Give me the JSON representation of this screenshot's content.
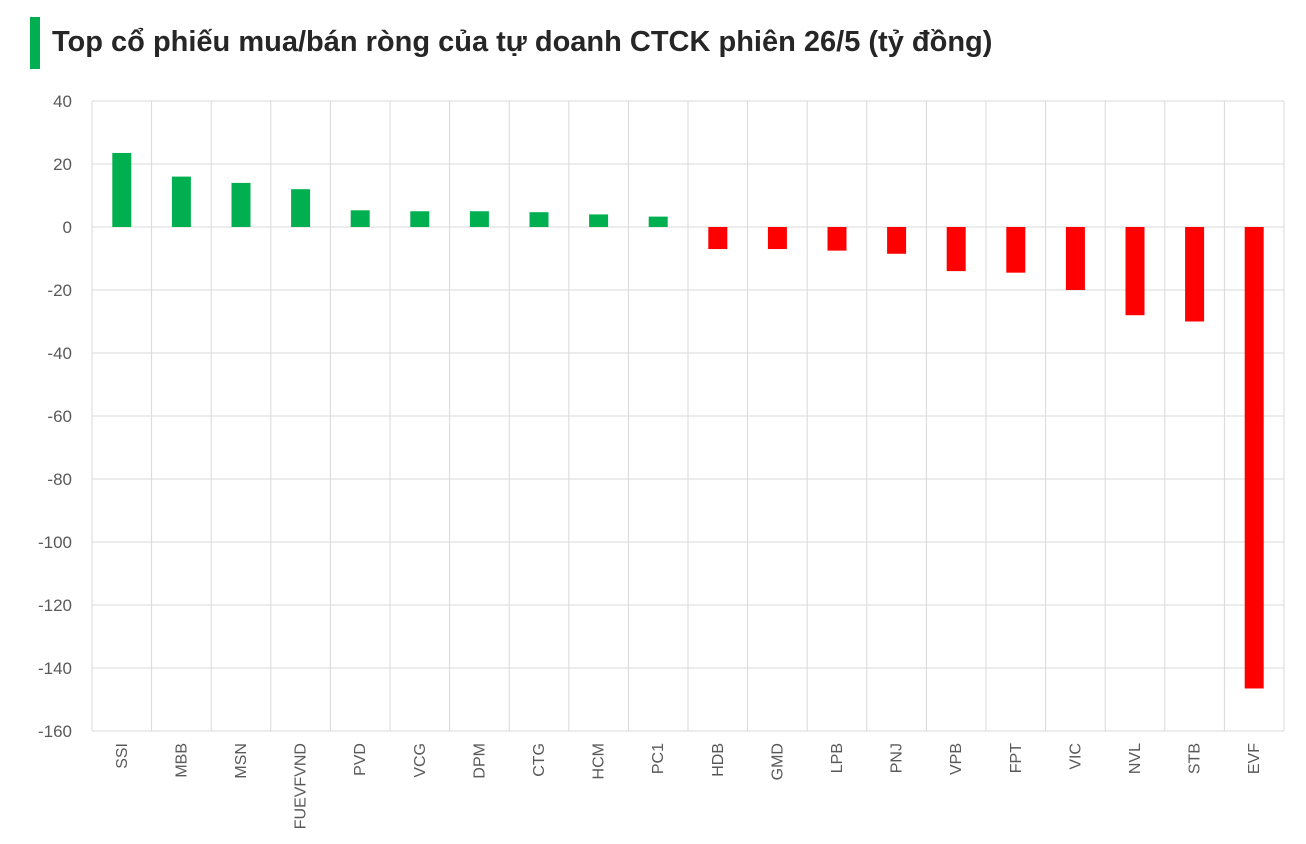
{
  "colors": {
    "accent": "#00b050",
    "positive": "#00b050",
    "negative": "#ff0000",
    "grid": "#d9d9d9",
    "text": "#595959"
  },
  "chart_data": {
    "type": "bar",
    "title": "Top cổ phiếu mua/bán ròng của tự doanh CTCK phiên 26/5 (tỷ đồng)",
    "xlabel": "",
    "ylabel": "",
    "ylim": [
      -160,
      40
    ],
    "yticks": [
      40,
      20,
      0,
      -20,
      -40,
      -60,
      -80,
      -100,
      -120,
      -140,
      -160
    ],
    "grid": true,
    "legend": "none",
    "categories": [
      "SSI",
      "MBB",
      "MSN",
      "FUEVFVND",
      "PVD",
      "VCG",
      "DPM",
      "CTG",
      "HCM",
      "PC1",
      "HDB",
      "GMD",
      "LPB",
      "PNJ",
      "VPB",
      "FPT",
      "VIC",
      "NVL",
      "STB",
      "EVF"
    ],
    "values": [
      23.5,
      16,
      14,
      12,
      5.3,
      5,
      5,
      4.7,
      4,
      3.3,
      -7,
      -7,
      -7.5,
      -8.5,
      -14,
      -14.5,
      -20,
      -28,
      -30,
      -146.5
    ]
  }
}
